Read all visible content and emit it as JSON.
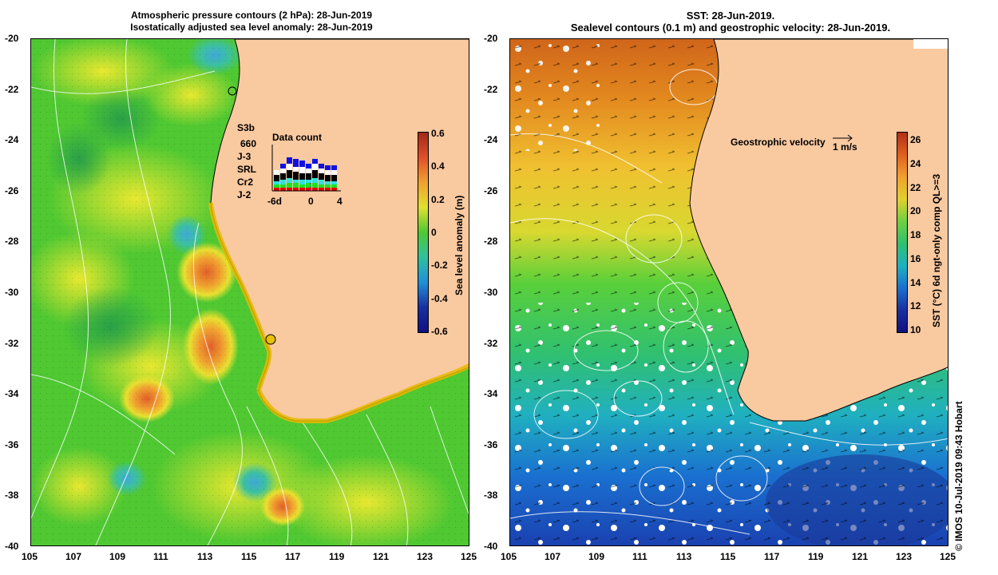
{
  "left_panel": {
    "title_line1": "Atmospheric pressure contours (2 hPa): 28-Jun-2019",
    "title_line2": "Isostatically adjusted sea level anomaly: 28-Jun-2019",
    "colorbar": {
      "label": "Sea level anomaly (m)",
      "ticks": [
        "0.6",
        "0.4",
        "0.2",
        "0",
        "-0.2",
        "-0.4",
        "-0.6"
      ],
      "min": -0.6,
      "max": 0.6
    },
    "legend": {
      "title": "Data count",
      "satellites": [
        {
          "name": "S3b",
          "color": "#1010e0"
        },
        {
          "name": "660",
          "color": "#000000"
        },
        {
          "name": "J-3",
          "color": "#000000"
        },
        {
          "name": "SRL",
          "color": "#30e0e0"
        },
        {
          "name": "Cr2",
          "color": "#20e020"
        },
        {
          "name": "J-2",
          "color": "#e00000"
        }
      ],
      "axis_labels": [
        "-6d",
        "0",
        "4"
      ]
    }
  },
  "right_panel": {
    "title_line1": "SST: 28-Jun-2019.",
    "title_line2": "Sealevel contours (0.1 m) and geostrophic velocity: 28-Jun-2019.",
    "velocity_label": "Geostrophic velocity",
    "velocity_scale": "1 m/s",
    "colorbar": {
      "label": "SST (°C) 6d ngt-only comp QL>=3",
      "ticks": [
        "26",
        "24",
        "22",
        "20",
        "18",
        "16",
        "14",
        "12",
        "10"
      ],
      "min": 10,
      "max": 27
    }
  },
  "axes": {
    "lat_ticks": [
      "-20",
      "-22",
      "-24",
      "-26",
      "-28",
      "-30",
      "-32",
      "-34",
      "-36",
      "-38",
      "-40"
    ],
    "lon_ticks": [
      "105",
      "107",
      "109",
      "111",
      "113",
      "115",
      "117",
      "119",
      "121",
      "123",
      "125"
    ]
  },
  "credit": "© IMOS 10-Jul-2019 09:43 Hobart",
  "colors": {
    "land": "#f9c9a0",
    "sla_neutral": "#4fc832"
  }
}
